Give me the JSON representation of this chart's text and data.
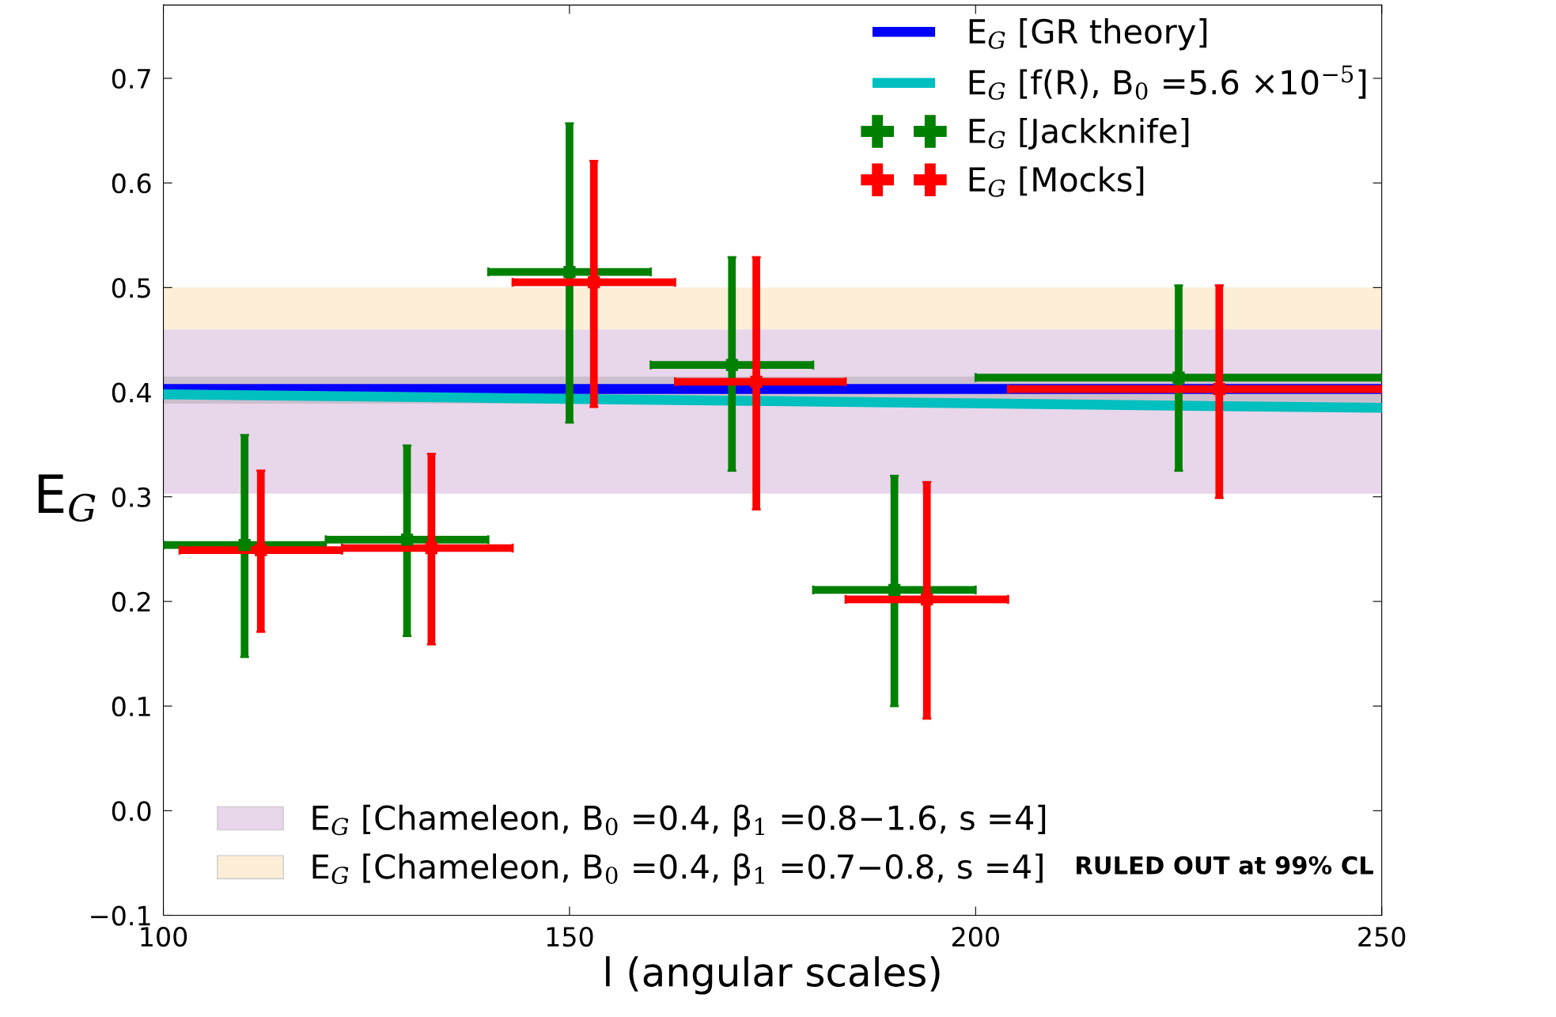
{
  "chart_data": {
    "type": "scatter",
    "xlabel": "l (angular scales)",
    "ylabel": "E$_{G}$",
    "xlim": [
      100,
      250
    ],
    "xticks": [
      100,
      150,
      200,
      250
    ],
    "ylim": [
      -0.1,
      0.77
    ],
    "yticks": [
      {
        "value": -0.1,
        "label": "−0.1"
      },
      {
        "value": 0.0,
        "label": "0.0"
      },
      0.1,
      0.2,
      0.3,
      0.4,
      0.5,
      0.6,
      0.7
    ],
    "grid": false,
    "legend": "top right",
    "series": [
      {
        "name": "E$_{G}$ [GR theory]",
        "type": "line",
        "color": "#0000ff",
        "x": [
          100,
          250
        ],
        "values": [
          0.403,
          0.403
        ]
      },
      {
        "name": "E$_{G}$ [f(R), B$_{0}$ =5.6 ×10$^{−5}$]",
        "type": "line",
        "color": "#00bfbf",
        "x": [
          100,
          250
        ],
        "values": [
          0.398,
          0.385
        ]
      },
      {
        "name": "E$_{G}$ [Jackknife]",
        "color": "#008000",
        "x": [
          110,
          130,
          150,
          170,
          190,
          225
        ],
        "values": [
          0.254,
          0.259,
          0.515,
          0.426,
          0.211,
          0.414
        ],
        "errors": [
          [
            0.147,
            0.359
          ],
          [
            0.167,
            0.349
          ],
          [
            0.371,
            0.657
          ],
          [
            0.325,
            0.529
          ],
          [
            0.1,
            0.32
          ],
          [
            0.325,
            0.502
          ]
        ],
        "xerrors": [
          [
            100,
            120
          ],
          [
            120,
            140
          ],
          [
            140,
            160
          ],
          [
            160,
            180
          ],
          [
            180,
            200
          ],
          [
            200,
            250
          ]
        ]
      },
      {
        "name": "E$_{G}$ [Mocks]",
        "color": "#ff0000",
        "x": [
          112,
          133,
          153,
          173,
          194,
          230
        ],
        "values": [
          0.249,
          0.251,
          0.505,
          0.41,
          0.202,
          0.403
        ],
        "errors": [
          [
            0.171,
            0.325
          ],
          [
            0.159,
            0.341
          ],
          [
            0.386,
            0.621
          ],
          [
            0.288,
            0.529
          ],
          [
            0.088,
            0.314
          ],
          [
            0.299,
            0.502
          ]
        ],
        "xerrors": [
          [
            102,
            122
          ],
          [
            122,
            143
          ],
          [
            143,
            163
          ],
          [
            163,
            184
          ],
          [
            184,
            204
          ],
          [
            204,
            250
          ]
        ]
      }
    ],
    "bands": [
      {
        "axis": "y",
        "from": 0.303,
        "to": 0.46,
        "color": "#e8d6ea",
        "label": "E$_{G}$ [Chameleon, B$_{0}$ =0.4, β$_{1}$ =0.8−1.6, s =4]"
      },
      {
        "axis": "y",
        "from": 0.46,
        "to": 0.5,
        "color": "#fdeed8",
        "label": "E$_{G}$ [Chameleon, B$_{0}$ =0.4, β$_{1}$ =0.7−0.8, s =4]"
      },
      {
        "axis": "y",
        "from": 0.389,
        "to": 0.415,
        "color": "#cbbfcd"
      }
    ],
    "annotations": [
      "RULED OUT at 99% CL"
    ]
  }
}
